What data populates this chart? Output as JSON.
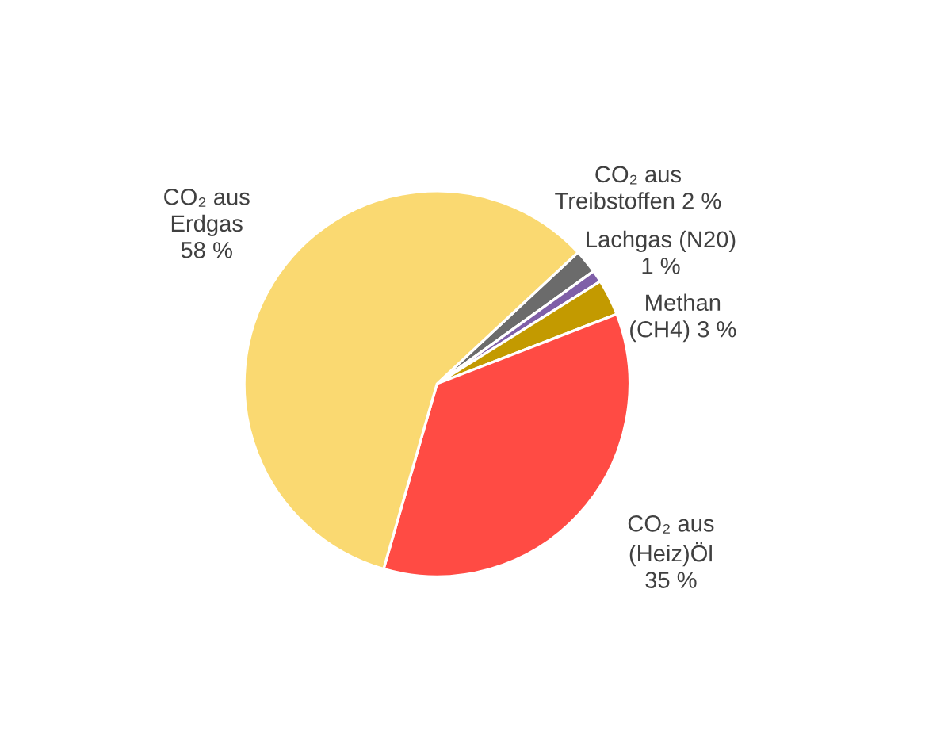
{
  "chart_data": {
    "type": "pie",
    "categories": [
      "CO₂ aus\nTreibstoffen",
      "Lachgas (N20)",
      "Methan\n(CH4)",
      "CO₂ aus\n(Heiz)Öl",
      "CO₂ aus\nErdgas"
    ],
    "values": [
      2,
      1,
      3,
      35,
      58
    ],
    "value_labels": [
      "2 %",
      "1 %",
      "3 %",
      "35 %",
      "58 %"
    ],
    "colors": [
      "#6b6b6b",
      "#7f5fa8",
      "#c39a00",
      "#ff4b44",
      "#fad971"
    ],
    "legend": false
  }
}
